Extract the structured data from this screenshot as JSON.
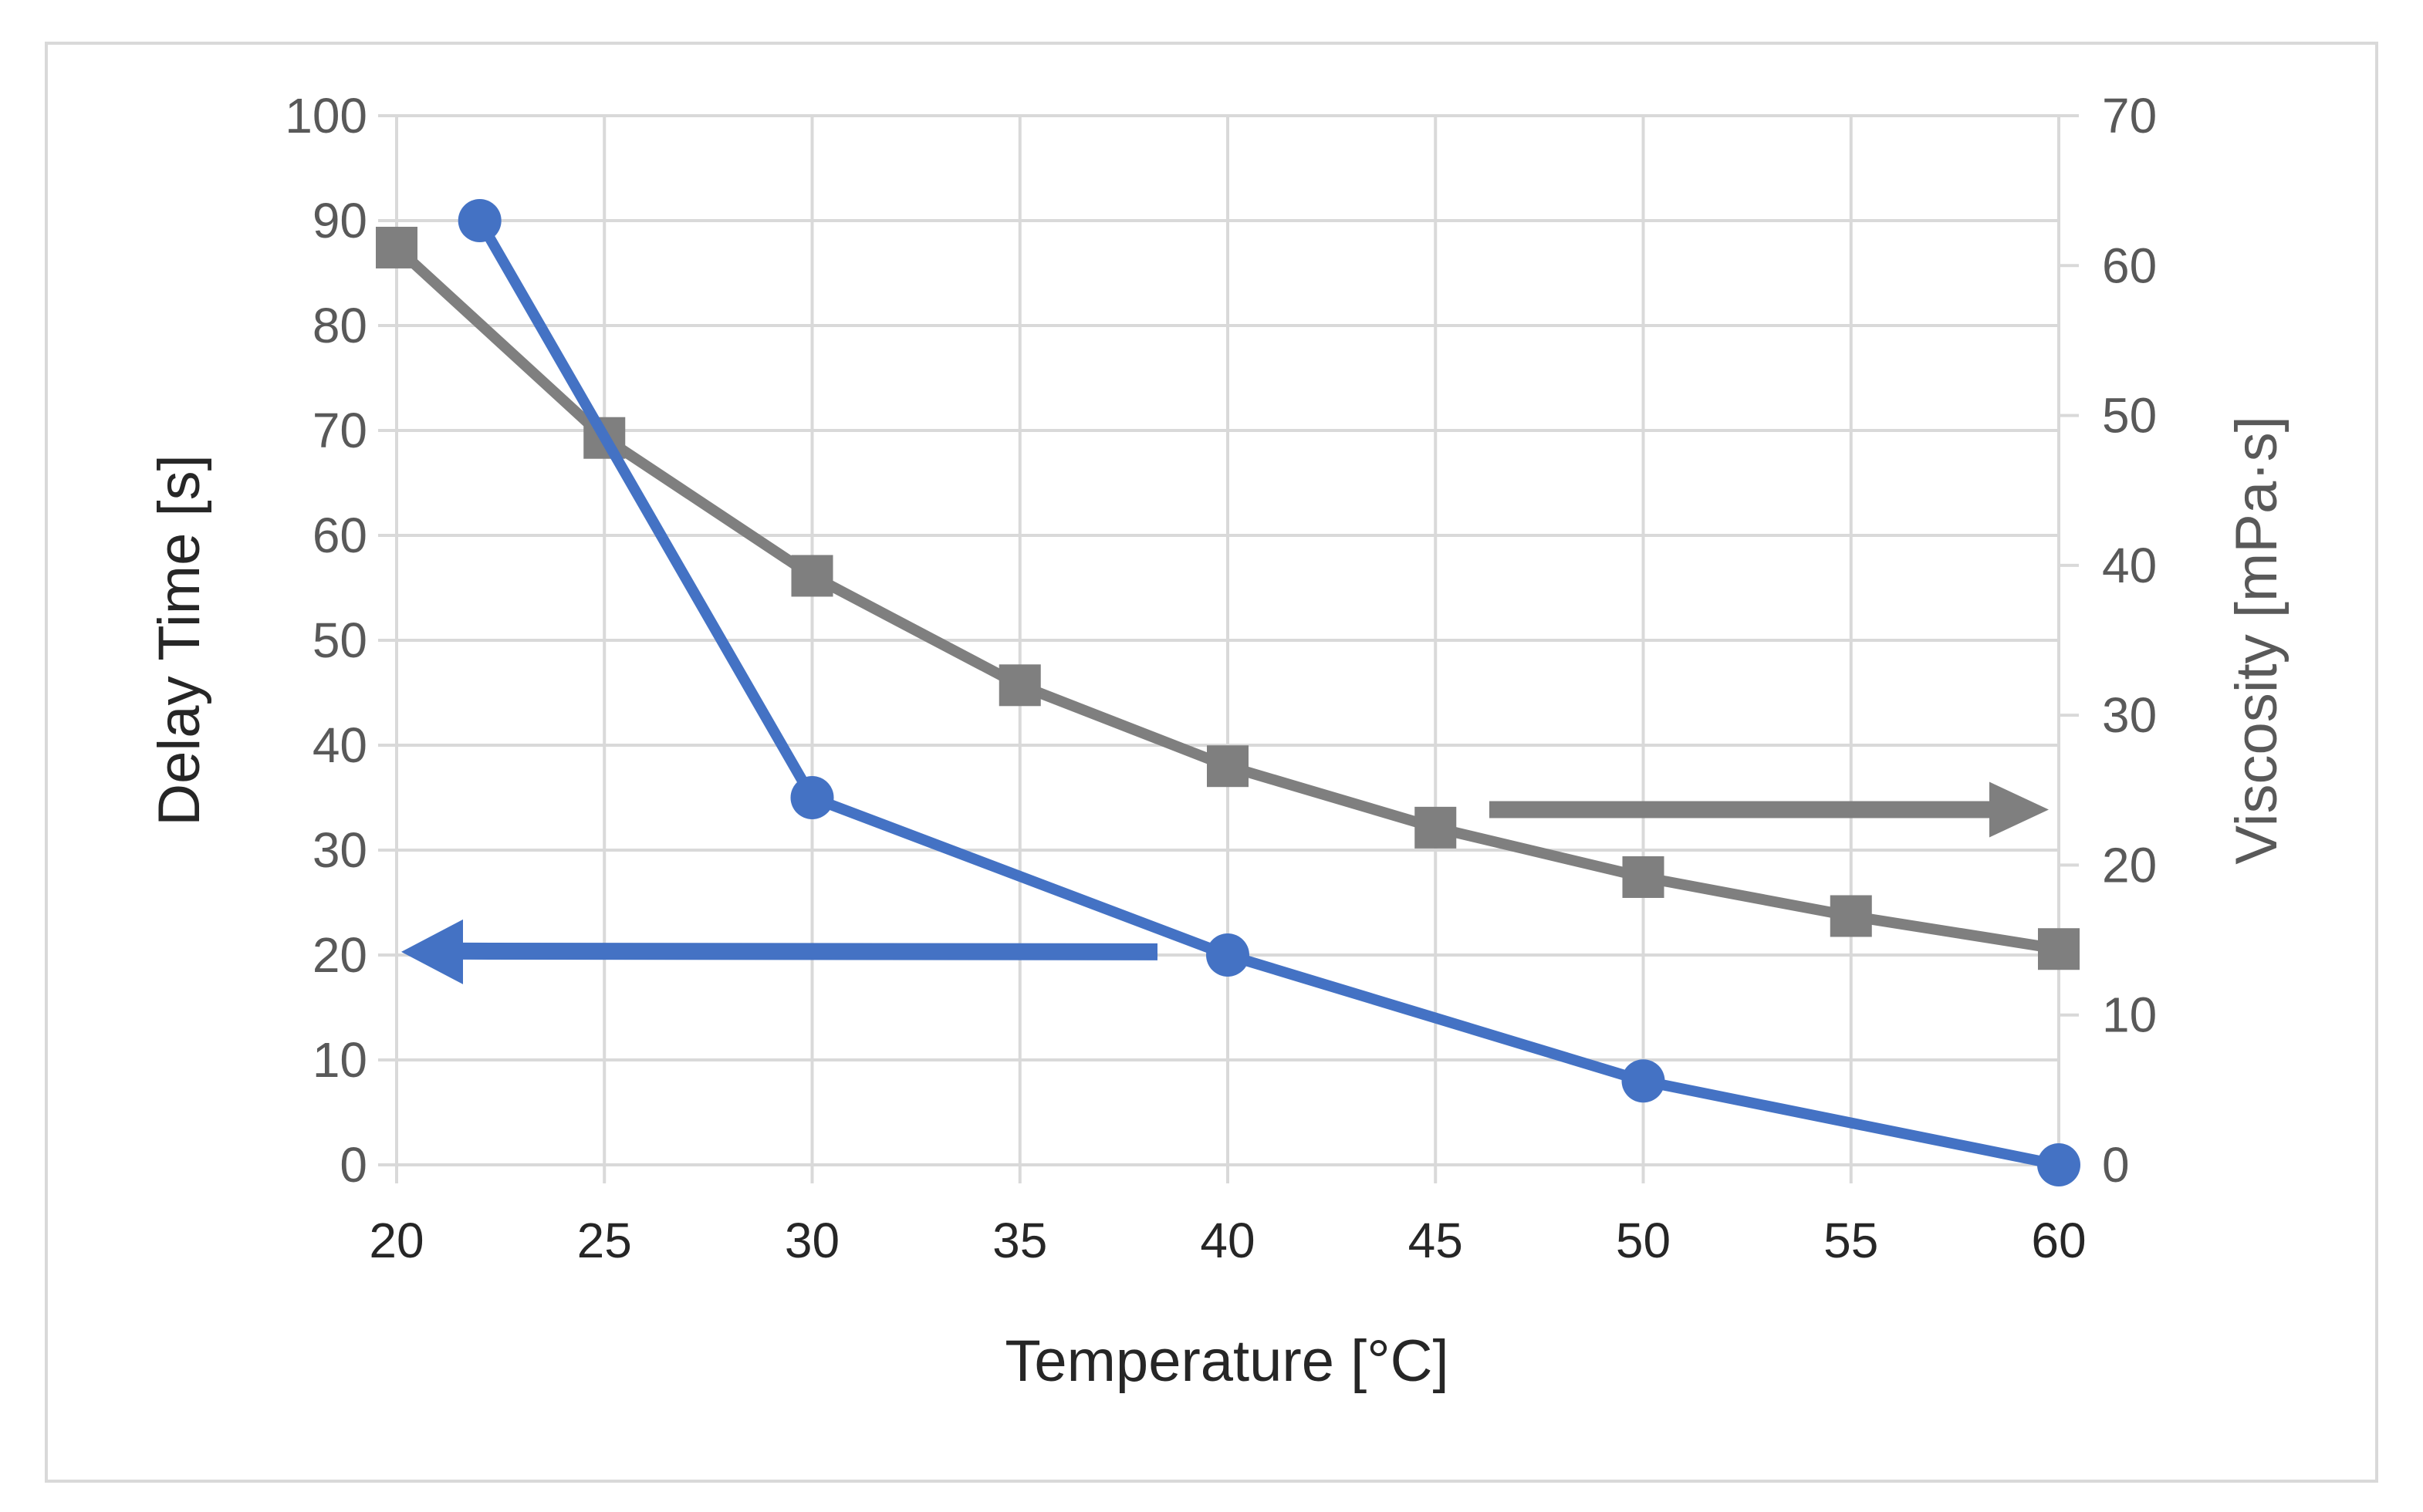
{
  "chart_data": {
    "type": "line",
    "title": "",
    "xlabel": "Temperature [°C]",
    "ylabel": "Delay Time [s]",
    "y2label": "Viscosity [mPa·s]",
    "xlim": [
      20,
      60
    ],
    "ylim": [
      0,
      100
    ],
    "y2lim": [
      0,
      70
    ],
    "xticks": [
      "20",
      "25",
      "30",
      "35",
      "40",
      "45",
      "50",
      "55",
      "60"
    ],
    "yticks": [
      "0",
      "10",
      "20",
      "30",
      "40",
      "50",
      "60",
      "70",
      "80",
      "90",
      "100"
    ],
    "y2ticks": [
      "0",
      "10",
      "20",
      "30",
      "40",
      "50",
      "60",
      "70"
    ],
    "grid": true,
    "series": [
      {
        "name": "Delay Time",
        "axis": "left",
        "marker": "circle",
        "color": "#4472c4",
        "x": [
          22,
          30,
          40,
          50,
          60
        ],
        "values": [
          90,
          35,
          20,
          8,
          0
        ]
      },
      {
        "name": "Viscosity",
        "axis": "right",
        "marker": "square",
        "color": "#7f7f7f",
        "x": [
          20,
          25,
          30,
          35,
          40,
          45,
          50,
          55,
          60
        ],
        "values": [
          61.2,
          48.5,
          39.3,
          32.0,
          26.6,
          22.5,
          19.2,
          16.6,
          14.4
        ]
      }
    ],
    "annotations": [
      {
        "type": "arrow",
        "direction": "left",
        "series": "Delay Time",
        "meaning": "read on left axis",
        "color": "#4472c4"
      },
      {
        "type": "arrow",
        "direction": "right",
        "series": "Viscosity",
        "meaning": "read on right axis",
        "color": "#7f7f7f"
      }
    ]
  }
}
